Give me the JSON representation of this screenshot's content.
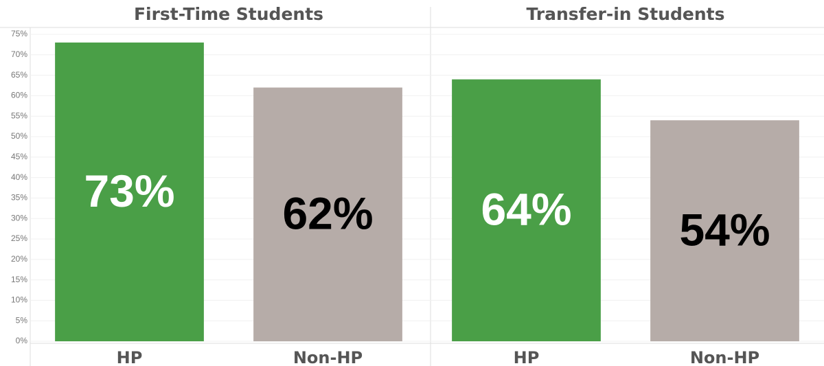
{
  "chart_data": {
    "type": "bar",
    "ylim": [
      0,
      75
    ],
    "yticks": [
      {
        "value": 0,
        "label": "0%"
      },
      {
        "value": 5,
        "label": "5%"
      },
      {
        "value": 10,
        "label": "10%"
      },
      {
        "value": 15,
        "label": "15%"
      },
      {
        "value": 20,
        "label": "20%"
      },
      {
        "value": 25,
        "label": "25%"
      },
      {
        "value": 30,
        "label": "30%"
      },
      {
        "value": 35,
        "label": "35%"
      },
      {
        "value": 40,
        "label": "40%"
      },
      {
        "value": 45,
        "label": "45%"
      },
      {
        "value": 50,
        "label": "50%"
      },
      {
        "value": 55,
        "label": "55%"
      },
      {
        "value": 60,
        "label": "60%"
      },
      {
        "value": 65,
        "label": "65%"
      },
      {
        "value": 70,
        "label": "70%"
      },
      {
        "value": 75,
        "label": "75%"
      }
    ],
    "grid": true,
    "panels": [
      {
        "title": "First-Time Students",
        "categories": [
          "HP",
          "Non-HP"
        ],
        "values": [
          73,
          62
        ],
        "value_labels": [
          "73%",
          "62%"
        ],
        "colors": [
          "#4a9f47",
          "#b6aca8"
        ],
        "label_colors": [
          "#ffffff",
          "#000000"
        ]
      },
      {
        "title": "Transfer-in Students",
        "categories": [
          "HP",
          "Non-HP"
        ],
        "values": [
          64,
          54
        ],
        "value_labels": [
          "64%",
          "54%"
        ],
        "colors": [
          "#4a9f47",
          "#b6aca8"
        ],
        "label_colors": [
          "#ffffff",
          "#000000"
        ]
      }
    ]
  }
}
